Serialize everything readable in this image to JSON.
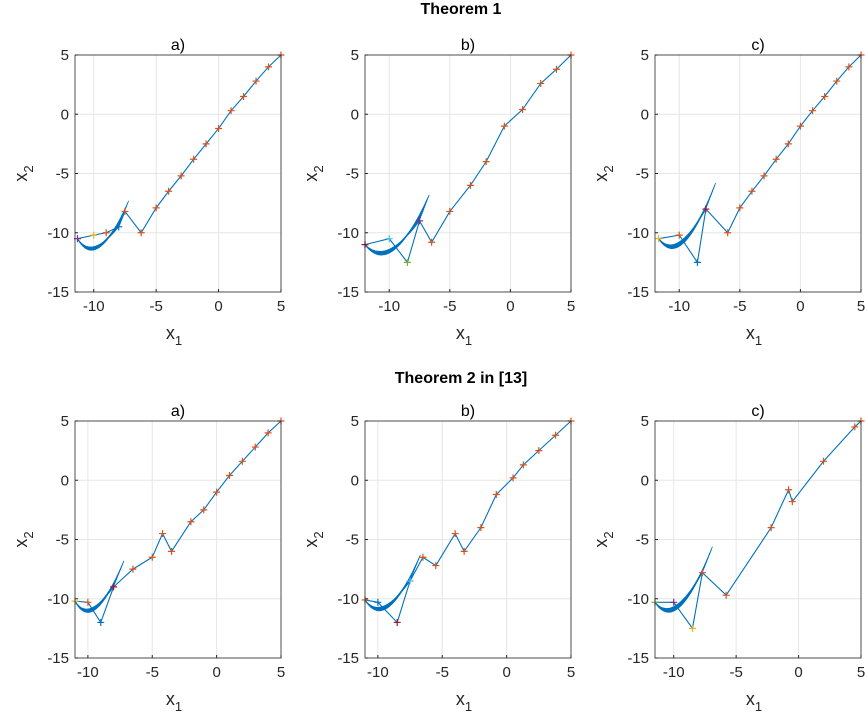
{
  "figure": {
    "row_titles": [
      "Theorem 1",
      "Theorem 2 in [13]"
    ],
    "panel_titles": [
      "a)",
      "b)",
      "c)"
    ]
  },
  "colors": {
    "trajectory": "#0072BD",
    "marker_primary": "#D95319",
    "marker_palette": [
      "#D95319",
      "#EDB120",
      "#7E2F8E",
      "#77AC30",
      "#4DBEEE",
      "#A2142F",
      "#0072BD"
    ],
    "grid": "#e6e6e6",
    "axis": "#262626"
  },
  "chart_data": [
    {
      "type": "line",
      "row": 0,
      "title": "a)",
      "xlabel": "x",
      "xlabel_sub": "1",
      "ylabel": "x",
      "ylabel_sub": "2",
      "xlim": [
        -11.5,
        5
      ],
      "ylim": [
        -15,
        5
      ],
      "xticks": [
        -10,
        -5,
        0,
        5
      ],
      "yticks": [
        5,
        0,
        -5,
        -10,
        -15
      ],
      "grid": true,
      "series": [
        {
          "x": [
            5,
            4,
            3,
            2,
            1,
            0,
            -1,
            -2,
            -3,
            -4,
            -5,
            -6.2,
            -7.5,
            -8,
            -9,
            -10,
            -11.3
          ],
          "y": [
            5,
            4,
            2.8,
            1.5,
            0.3,
            -1.2,
            -2.5,
            -3.8,
            -5.2,
            -6.5,
            -7.9,
            -10,
            -8.2,
            -9.5,
            -10,
            -10.2,
            -10.5
          ]
        }
      ]
    },
    {
      "type": "line",
      "row": 0,
      "title": "b)",
      "xlabel": "x",
      "xlabel_sub": "1",
      "ylabel": "x",
      "ylabel_sub": "2",
      "xlim": [
        -12,
        5
      ],
      "ylim": [
        -15,
        5
      ],
      "xticks": [
        -10,
        -5,
        0,
        5
      ],
      "yticks": [
        5,
        0,
        -5,
        -10,
        -15
      ],
      "grid": true,
      "series": [
        {
          "x": [
            5,
            3.8,
            2.5,
            1,
            -0.5,
            -2,
            -3.3,
            -5,
            -6.5,
            -7.5,
            -8.5,
            -10,
            -12
          ],
          "y": [
            5,
            3.8,
            2.6,
            0.4,
            -1,
            -4,
            -6,
            -8.2,
            -10.8,
            -9,
            -12.5,
            -10.5,
            -11
          ]
        }
      ]
    },
    {
      "type": "line",
      "row": 0,
      "title": "c)",
      "xlabel": "x",
      "xlabel_sub": "1",
      "ylabel": "x",
      "ylabel_sub": "2",
      "xlim": [
        -12,
        5
      ],
      "ylim": [
        -15,
        5
      ],
      "xticks": [
        -10,
        -5,
        0,
        5
      ],
      "yticks": [
        5,
        0,
        -5,
        -10,
        -15
      ],
      "grid": true,
      "series": [
        {
          "x": [
            5,
            4,
            3,
            2,
            1,
            0,
            -1,
            -2,
            -3,
            -4,
            -5,
            -6,
            -7.8,
            -8.5,
            -10,
            -11.7
          ],
          "y": [
            5,
            4,
            2.8,
            1.5,
            0.3,
            -1,
            -2.5,
            -3.8,
            -5.2,
            -6.5,
            -7.9,
            -10,
            -8,
            -12.5,
            -10.2,
            -10.5
          ]
        }
      ]
    },
    {
      "type": "line",
      "row": 1,
      "title": "a)",
      "xlabel": "x",
      "xlabel_sub": "1",
      "ylabel": "x",
      "ylabel_sub": "2",
      "xlim": [
        -11,
        5
      ],
      "ylim": [
        -15,
        5
      ],
      "xticks": [
        -10,
        -5,
        0,
        5
      ],
      "yticks": [
        5,
        0,
        -5,
        -10,
        -15
      ],
      "grid": true,
      "series": [
        {
          "x": [
            5,
            4,
            3,
            2,
            1,
            0,
            -1,
            -2,
            -3.5,
            -4.2,
            -5,
            -6.5,
            -8,
            -9,
            -10,
            -11
          ],
          "y": [
            5,
            4,
            2.8,
            1.6,
            0.4,
            -1,
            -2.5,
            -3.5,
            -6,
            -4.5,
            -6.5,
            -7.5,
            -9,
            -12,
            -10.3,
            -10.2
          ]
        }
      ]
    },
    {
      "type": "line",
      "row": 1,
      "title": "b)",
      "xlabel": "x",
      "xlabel_sub": "1",
      "ylabel": "x",
      "ylabel_sub": "2",
      "xlim": [
        -11,
        5
      ],
      "ylim": [
        -15,
        5
      ],
      "xticks": [
        -10,
        -5,
        0,
        5
      ],
      "yticks": [
        5,
        0,
        -5,
        -10,
        -15
      ],
      "grid": true,
      "series": [
        {
          "x": [
            5,
            3.8,
            2.5,
            1.3,
            0.5,
            -0.8,
            -2,
            -3.3,
            -4,
            -5.5,
            -6.5,
            -7.5,
            -8.5,
            -10,
            -11
          ],
          "y": [
            5,
            3.8,
            2.5,
            1.3,
            0.2,
            -1.2,
            -4,
            -6,
            -4.5,
            -7.2,
            -6.5,
            -8.5,
            -12,
            -10.3,
            -10.1
          ]
        }
      ]
    },
    {
      "type": "line",
      "row": 1,
      "title": "c)",
      "xlabel": "x",
      "xlabel_sub": "1",
      "ylabel": "x",
      "ylabel_sub": "2",
      "xlim": [
        -11.5,
        5
      ],
      "ylim": [
        -15,
        5
      ],
      "xticks": [
        -10,
        -5,
        0,
        5
      ],
      "yticks": [
        5,
        0,
        -5,
        -10,
        -15
      ],
      "grid": true,
      "series": [
        {
          "x": [
            5,
            4.5,
            2,
            -0.5,
            -0.8,
            -2.2,
            -5.8,
            -7.7,
            -8.5,
            -10,
            -11.5
          ],
          "y": [
            5,
            4.5,
            1.6,
            -1.8,
            -0.8,
            -4,
            -9.7,
            -7.8,
            -12.5,
            -10.3,
            -10.3
          ]
        }
      ]
    }
  ]
}
